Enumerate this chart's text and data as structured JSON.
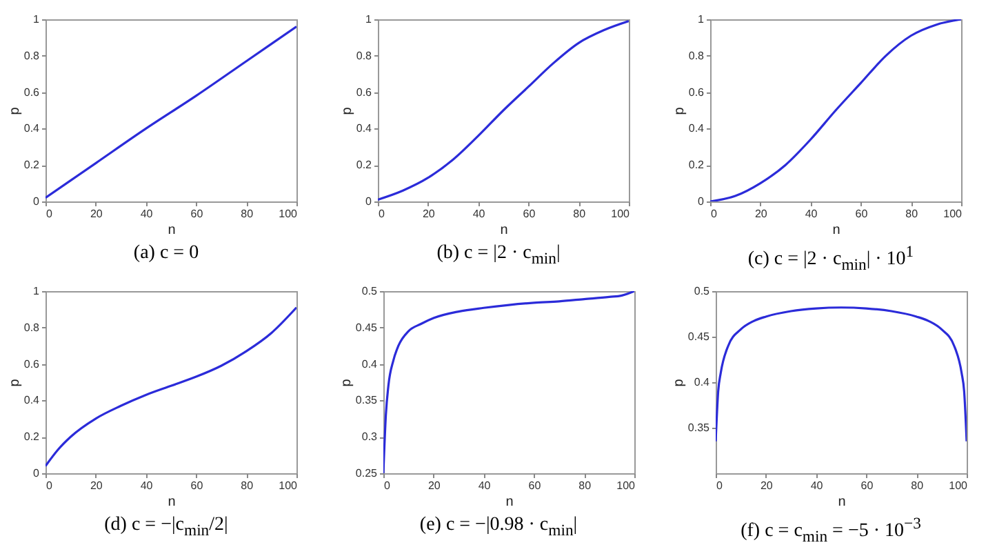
{
  "chart_data": [
    {
      "type": "line",
      "title": "(a) c = 0",
      "xlabel": "n",
      "ylabel": "p",
      "xlim": [
        0,
        100
      ],
      "xticks": [
        0,
        20,
        40,
        60,
        80,
        100
      ],
      "ylim": [
        0,
        1
      ],
      "yticks": [
        0,
        0.2,
        0.4,
        0.6,
        0.8,
        1
      ],
      "grid": false,
      "series": [
        {
          "color": "#2b2bd9",
          "x": [
            0,
            20,
            40,
            60,
            80,
            100
          ],
          "values": [
            0.02,
            0.21,
            0.4,
            0.58,
            0.77,
            0.96
          ]
        }
      ]
    },
    {
      "type": "line",
      "title": "(b) c = |2 · c$_{min}$|",
      "xlabel": "n",
      "ylabel": "p",
      "xlim": [
        0,
        100
      ],
      "xticks": [
        0,
        20,
        40,
        60,
        80,
        100
      ],
      "ylim": [
        0,
        1
      ],
      "yticks": [
        0,
        0.2,
        0.4,
        0.6,
        0.8,
        1
      ],
      "grid": false,
      "series": [
        {
          "color": "#2b2bd9",
          "x": [
            0,
            10,
            20,
            30,
            40,
            50,
            60,
            70,
            80,
            90,
            100
          ],
          "values": [
            0.01,
            0.06,
            0.13,
            0.23,
            0.36,
            0.5,
            0.63,
            0.76,
            0.87,
            0.94,
            0.99
          ]
        }
      ]
    },
    {
      "type": "line",
      "title": "(c) c = |2 · c$_{min}$| · 10$^{1}$",
      "xlabel": "n",
      "ylabel": "p",
      "xlim": [
        0,
        100
      ],
      "xticks": [
        0,
        20,
        40,
        60,
        80,
        100
      ],
      "ylim": [
        0,
        1
      ],
      "yticks": [
        0,
        0.2,
        0.4,
        0.6,
        0.8,
        1
      ],
      "grid": false,
      "series": [
        {
          "color": "#2b2bd9",
          "x": [
            0,
            10,
            20,
            30,
            40,
            50,
            60,
            70,
            80,
            90,
            100
          ],
          "values": [
            0,
            0.03,
            0.1,
            0.2,
            0.34,
            0.5,
            0.65,
            0.8,
            0.91,
            0.97,
            1.0
          ]
        }
      ]
    },
    {
      "type": "line",
      "title": "(d) c = −|c$_{min}$/2|",
      "xlabel": "n",
      "ylabel": "p",
      "xlim": [
        0,
        100
      ],
      "xticks": [
        0,
        20,
        40,
        60,
        80,
        100
      ],
      "ylim": [
        0,
        1
      ],
      "yticks": [
        0,
        0.2,
        0.4,
        0.6,
        0.8,
        1
      ],
      "grid": false,
      "series": [
        {
          "color": "#2b2bd9",
          "x": [
            0,
            5,
            10,
            20,
            30,
            40,
            50,
            60,
            70,
            80,
            90,
            100
          ],
          "values": [
            0.04,
            0.13,
            0.2,
            0.3,
            0.37,
            0.43,
            0.48,
            0.53,
            0.59,
            0.67,
            0.77,
            0.91
          ]
        }
      ]
    },
    {
      "type": "line",
      "title": "(e) c = −|0.98 · c$_{min}$|",
      "xlabel": "n",
      "ylabel": "p",
      "xlim": [
        0,
        100
      ],
      "xticks": [
        0,
        20,
        40,
        60,
        80,
        100
      ],
      "ylim": [
        0.25,
        0.5
      ],
      "yticks": [
        0.25,
        0.3,
        0.35,
        0.4,
        0.45,
        0.5
      ],
      "grid": false,
      "series": [
        {
          "color": "#2b2bd9",
          "x": [
            0,
            1,
            2,
            4,
            6,
            10,
            15,
            20,
            30,
            40,
            50,
            60,
            70,
            80,
            90,
            95,
            100
          ],
          "values": [
            0.25,
            0.33,
            0.37,
            0.405,
            0.425,
            0.445,
            0.455,
            0.463,
            0.472,
            0.477,
            0.481,
            0.484,
            0.486,
            0.489,
            0.492,
            0.494,
            0.5
          ]
        }
      ]
    },
    {
      "type": "line",
      "title": "(f) c = c$_{min}$ = −5 · 10$^{−3}$",
      "xlabel": "n",
      "ylabel": "p",
      "xlim": [
        0,
        100
      ],
      "xticks": [
        0,
        20,
        40,
        60,
        80,
        100
      ],
      "ylim": [
        0.3,
        0.5
      ],
      "yticks": [
        0.35,
        0.4,
        0.45,
        0.5
      ],
      "grid": false,
      "series": [
        {
          "color": "#2b2bd9",
          "x": [
            0,
            1,
            2,
            5,
            10,
            15,
            20,
            30,
            40,
            50,
            60,
            70,
            80,
            85,
            90,
            95,
            98,
            99,
            100
          ],
          "values": [
            0.335,
            0.39,
            0.41,
            0.44,
            0.458,
            0.467,
            0.472,
            0.478,
            0.481,
            0.482,
            0.481,
            0.478,
            0.472,
            0.467,
            0.458,
            0.44,
            0.41,
            0.39,
            0.335
          ]
        }
      ]
    }
  ]
}
